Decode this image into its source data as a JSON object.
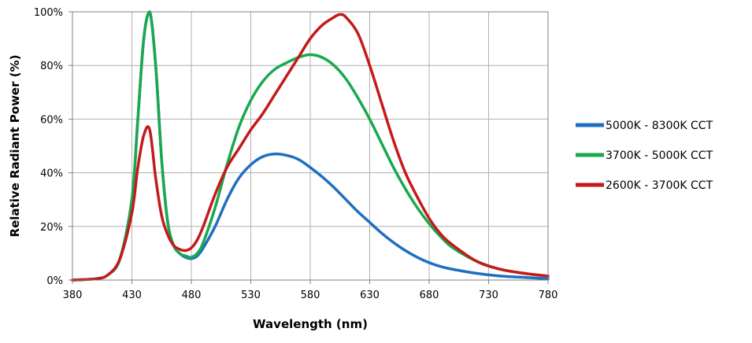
{
  "chart_data": {
    "type": "line",
    "title": "",
    "xlabel": "Wavelength (nm)",
    "ylabel": "Relative Radiant Power (%)",
    "xlim": [
      380,
      780
    ],
    "ylim": [
      0,
      100
    ],
    "x_ticks": [
      380,
      430,
      480,
      530,
      580,
      630,
      680,
      730,
      780
    ],
    "x_tick_labels": [
      "380",
      "430",
      "480",
      "530",
      "580",
      "630",
      "680",
      "730",
      "780"
    ],
    "y_ticks": [
      0,
      20,
      40,
      60,
      80,
      100
    ],
    "y_tick_labels": [
      "0%",
      "20%",
      "40%",
      "60%",
      "80%",
      "100%"
    ],
    "grid": {
      "x": true,
      "y": true
    },
    "legend_position": "right",
    "series": [
      {
        "name": "5000K - 8300K CCT",
        "color": "#1f6fbf",
        "x": [
          380,
          400,
          410,
          420,
          430,
          435,
          440,
          445,
          450,
          455,
          460,
          465,
          470,
          475,
          480,
          485,
          490,
          500,
          510,
          520,
          530,
          540,
          550,
          560,
          570,
          580,
          590,
          600,
          610,
          620,
          630,
          640,
          650,
          660,
          670,
          680,
          690,
          700,
          720,
          740,
          760,
          780
        ],
        "y": [
          0,
          0.5,
          2,
          8,
          30,
          60,
          90,
          100,
          80,
          45,
          22,
          13,
          10,
          8.5,
          8,
          9,
          12,
          20,
          30,
          38,
          43,
          46,
          47,
          46.5,
          45,
          42,
          38.5,
          34.5,
          30,
          25.5,
          21.5,
          17.5,
          14,
          11,
          8.5,
          6.5,
          5,
          4,
          2.5,
          1.5,
          1,
          0.5
        ]
      },
      {
        "name": "3700K - 5000K CCT",
        "color": "#1aa84f",
        "x": [
          380,
          400,
          410,
          420,
          430,
          435,
          440,
          445,
          450,
          455,
          460,
          465,
          470,
          475,
          480,
          485,
          490,
          500,
          510,
          520,
          530,
          540,
          550,
          560,
          570,
          580,
          590,
          600,
          610,
          620,
          630,
          640,
          650,
          660,
          670,
          680,
          690,
          700,
          720,
          740,
          760,
          780
        ],
        "y": [
          0,
          0.5,
          2,
          8,
          30,
          60,
          90,
          100,
          80,
          45,
          22,
          13,
          10,
          9,
          8.5,
          10,
          14,
          27,
          43,
          57,
          67,
          74,
          78.5,
          81,
          83,
          84,
          83,
          80,
          75,
          68,
          60,
          51,
          42,
          34,
          27,
          21,
          16,
          12,
          7,
          4,
          2.5,
          1.5
        ]
      },
      {
        "name": "2600K - 3700K CCT",
        "color": "#c41a1a",
        "x": [
          380,
          400,
          410,
          420,
          430,
          435,
          440,
          445,
          450,
          455,
          460,
          465,
          470,
          475,
          480,
          485,
          490,
          500,
          510,
          520,
          530,
          540,
          550,
          560,
          570,
          580,
          590,
          600,
          605,
          610,
          620,
          630,
          640,
          650,
          660,
          670,
          680,
          690,
          700,
          720,
          740,
          760,
          780
        ],
        "y": [
          0,
          0.5,
          2,
          8,
          25,
          42,
          54,
          56,
          38,
          24,
          17,
          13,
          11.5,
          11,
          12,
          15,
          20,
          32,
          42,
          49,
          56,
          62,
          69,
          76,
          83,
          90,
          95,
          98,
          99,
          98,
          92,
          80,
          66,
          52,
          40,
          31,
          23,
          17,
          13,
          7,
          4,
          2.5,
          1.5
        ]
      }
    ]
  }
}
